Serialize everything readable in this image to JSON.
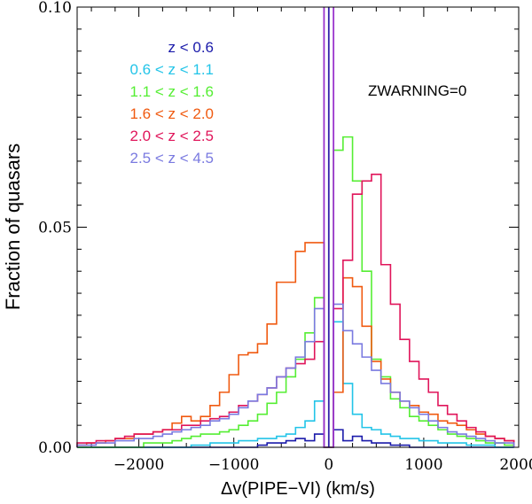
{
  "chart_data": {
    "type": "histogram",
    "xlabel": "Δv(PIPE−VI) (km/s)",
    "ylabel": "Fraction of quasars",
    "xlim": [
      -2650,
      2000
    ],
    "ylim": [
      0,
      0.1
    ],
    "x_ticks": [
      -2000,
      -1000,
      0,
      1000,
      2000
    ],
    "x_tick_labels": [
      "−2000",
      "−1000",
      "0",
      "1000",
      "2000"
    ],
    "y_ticks": [
      0.0,
      0.05,
      0.1
    ],
    "y_tick_labels": [
      "0.00",
      "0.05",
      "0.10"
    ],
    "annotation": "ZWARNING=0",
    "bin_edges": [
      -2650,
      -2550,
      -2450,
      -2350,
      -2250,
      -2150,
      -2050,
      -1950,
      -1850,
      -1750,
      -1650,
      -1550,
      -1450,
      -1350,
      -1250,
      -1150,
      -1050,
      -950,
      -850,
      -750,
      -650,
      -550,
      -450,
      -350,
      -250,
      -150,
      -50,
      50,
      150,
      250,
      350,
      450,
      550,
      650,
      750,
      850,
      950,
      1050,
      1150,
      1250,
      1350,
      1450,
      1550,
      1650,
      1750,
      1850,
      1950
    ],
    "vertical_lines": [
      {
        "x": -50,
        "color": "#9933cc"
      },
      {
        "x": 0,
        "color": "#3322aa"
      },
      {
        "x": 50,
        "color": "#9933cc"
      }
    ],
    "series": [
      {
        "name": "z < 0.6",
        "color": "#1a1aaa",
        "values": [
          0,
          0,
          0,
          0,
          0,
          0,
          0,
          0,
          0,
          0,
          0,
          0,
          0,
          0,
          0,
          0,
          0,
          0,
          0,
          0.0005,
          0.001,
          0.001,
          0.0015,
          0.002,
          0.0015,
          0.003,
          0,
          0.004,
          0.0015,
          0.0025,
          0.0015,
          0.001,
          0.001,
          0.0005,
          0.0005,
          0,
          0,
          0,
          0,
          0,
          0,
          0,
          0,
          0,
          0,
          0
        ]
      },
      {
        "name": "0.6 < z < 1.1",
        "color": "#22c4e8",
        "values": [
          0,
          0,
          0,
          0,
          0,
          0,
          0,
          0,
          0,
          0,
          0,
          0,
          0.0005,
          0.0005,
          0.001,
          0.001,
          0.001,
          0.0015,
          0.0015,
          0.002,
          0.002,
          0.0025,
          0.003,
          0.0045,
          0.006,
          0.0105,
          0,
          0.0285,
          0.0145,
          0.0075,
          0.0045,
          0.004,
          0.003,
          0.0025,
          0.002,
          0.002,
          0.0015,
          0.0015,
          0.001,
          0.001,
          0.001,
          0.0005,
          0.0005,
          0.0005,
          0,
          0
        ]
      },
      {
        "name": "1.1 < z < 1.6",
        "color": "#55ee33",
        "values": [
          0,
          0,
          0,
          0,
          0,
          0,
          0,
          0.001,
          0.001,
          0.001,
          0.0015,
          0.002,
          0.0025,
          0.003,
          0.003,
          0.0035,
          0.004,
          0.005,
          0.006,
          0.0075,
          0.01,
          0.0125,
          0.016,
          0.02,
          0.026,
          0.034,
          0,
          0.0675,
          0.0705,
          0.0605,
          0.04,
          0.02,
          0.016,
          0.011,
          0.009,
          0.007,
          0.006,
          0.005,
          0.004,
          0.003,
          0.0025,
          0.002,
          0.0015,
          0.001,
          0.001,
          0.0005
        ]
      },
      {
        "name": "1.6 < z < 2.0",
        "color": "#f05a10",
        "values": [
          0.0005,
          0.001,
          0.001,
          0.0015,
          0.002,
          0.002,
          0.003,
          0.003,
          0.0035,
          0.004,
          0.0055,
          0.007,
          0.006,
          0.007,
          0.0095,
          0.0125,
          0.0165,
          0.021,
          0.0215,
          0.0235,
          0.028,
          0.0375,
          0.0375,
          0.0445,
          0.0465,
          0.0465,
          0,
          0.0125,
          0.0385,
          0.0365,
          0.0275,
          0.0195,
          0.0155,
          0.0125,
          0.0105,
          0.0095,
          0.008,
          0.0075,
          0.006,
          0.0055,
          0.005,
          0.004,
          0.003,
          0.0025,
          0.002,
          0.0015
        ]
      },
      {
        "name": "2.0 < z < 2.5",
        "color": "#e0155a",
        "values": [
          0.001,
          0.001,
          0.0015,
          0.0015,
          0.002,
          0.0025,
          0.003,
          0.003,
          0.0035,
          0.004,
          0.004,
          0.005,
          0.005,
          0.006,
          0.0065,
          0.007,
          0.008,
          0.0095,
          0.0105,
          0.012,
          0.0135,
          0.016,
          0.018,
          0.019,
          0.02,
          0.024,
          0,
          0.0315,
          0.0425,
          0.0575,
          0.0605,
          0.062,
          0.0415,
          0.0325,
          0.0245,
          0.0195,
          0.0155,
          0.0125,
          0.0095,
          0.0075,
          0.006,
          0.0045,
          0.0035,
          0.0025,
          0.002,
          0.0015
        ]
      },
      {
        "name": "2.5 < z < 4.5",
        "color": "#7a7ae0",
        "values": [
          0.0005,
          0.0005,
          0.001,
          0.001,
          0.0015,
          0.0015,
          0.002,
          0.002,
          0.0025,
          0.003,
          0.0035,
          0.004,
          0.0045,
          0.005,
          0.006,
          0.0065,
          0.0075,
          0.009,
          0.0105,
          0.012,
          0.0135,
          0.016,
          0.018,
          0.0205,
          0.024,
          0.0315,
          0,
          0.0325,
          0.0265,
          0.0235,
          0.0205,
          0.0175,
          0.0145,
          0.0125,
          0.0105,
          0.009,
          0.0075,
          0.006,
          0.0045,
          0.0035,
          0.003,
          0.0025,
          0.002,
          0.0015,
          0.001,
          0.001
        ]
      }
    ]
  }
}
